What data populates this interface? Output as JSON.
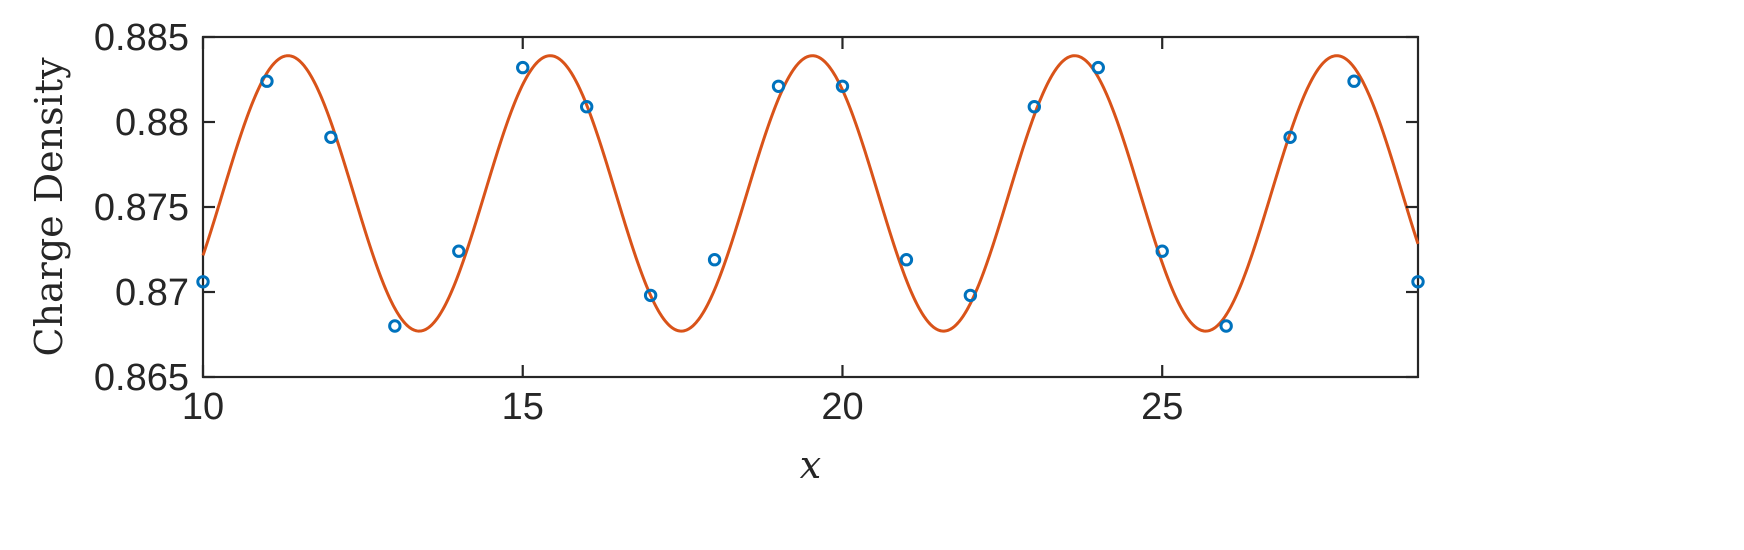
{
  "chart_data": {
    "type": "line",
    "title": "",
    "xlabel": "x",
    "ylabel": "Charge Density",
    "xlim": [
      10,
      29
    ],
    "ylim": [
      0.865,
      0.885
    ],
    "x_ticks": [
      10,
      15,
      20,
      25
    ],
    "x_tick_labels": [
      "10",
      "15",
      "20",
      "25"
    ],
    "y_ticks": [
      0.865,
      0.87,
      0.875,
      0.88,
      0.885
    ],
    "y_tick_labels": [
      "0.865",
      "0.87",
      "0.875",
      "0.88",
      "0.885"
    ],
    "grid": false,
    "legend": "none",
    "series": [
      {
        "kind": "scatter",
        "marker": "circle",
        "color": "#0072BD",
        "x": [
          10,
          11,
          12,
          13,
          14,
          15,
          16,
          17,
          18,
          19,
          20,
          21,
          22,
          23,
          24,
          25,
          26,
          27,
          28,
          29
        ],
        "y": [
          0.8706,
          0.8824,
          0.8791,
          0.868,
          0.8724,
          0.8832,
          0.8809,
          0.8698,
          0.8719,
          0.8821,
          0.8821,
          0.8719,
          0.8698,
          0.8809,
          0.8832,
          0.8724,
          0.868,
          0.8791,
          0.8824,
          0.8706
        ]
      },
      {
        "kind": "line",
        "color": "#D95319",
        "function": "sinusoid",
        "mean": 0.8758,
        "amplitude": 0.0081,
        "period": 4.1,
        "peak_x": 11.33,
        "x_range": [
          10,
          29
        ]
      }
    ]
  }
}
